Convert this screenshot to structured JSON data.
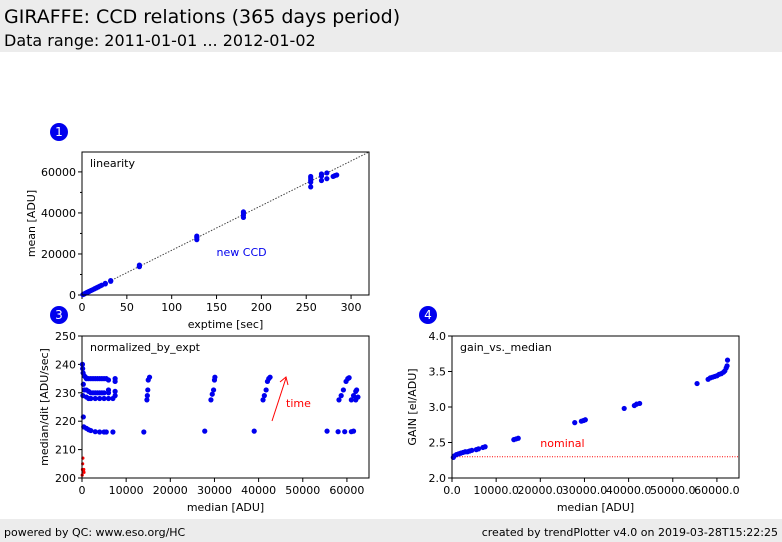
{
  "header": {
    "title": "GIRAFFE: CCD relations (365 days period)",
    "subtitle": "Data range: 2011-01-01 ... 2012-01-02"
  },
  "footer": {
    "left": "powered by QC: www.eso.org/HC",
    "right": "created by trendPlotter v4.0 on 2019-03-28T15:22:25"
  },
  "badges": [
    "1",
    "3",
    "4"
  ],
  "colors": {
    "points": "#0000ee",
    "annotation": "#ff0000",
    "bg": "#ececec"
  },
  "chart_data": [
    {
      "type": "scatter",
      "title": "linearity",
      "xlabel": "exptime [sec]",
      "ylabel": "mean [ADU]",
      "xlim": [
        0,
        320
      ],
      "ylim": [
        0,
        69700
      ],
      "xticks": [
        0,
        50,
        100,
        150,
        200,
        250,
        300
      ],
      "yticks": [
        0,
        20000,
        40000,
        60000
      ],
      "annotation": "new CCD",
      "reference_line": {
        "slope": 217.8,
        "style": "dotted"
      },
      "points": [
        [
          1,
          200
        ],
        [
          2,
          420
        ],
        [
          3,
          650
        ],
        [
          4,
          870
        ],
        [
          5,
          1090
        ],
        [
          6,
          1300
        ],
        [
          7,
          1520
        ],
        [
          8,
          1750
        ],
        [
          10,
          2180
        ],
        [
          12,
          2600
        ],
        [
          14,
          3050
        ],
        [
          16,
          3480
        ],
        [
          18,
          3900
        ],
        [
          20,
          4350
        ],
        [
          22,
          4780
        ],
        [
          26,
          5700
        ],
        [
          26,
          5400
        ],
        [
          32,
          7000
        ],
        [
          32,
          6700
        ],
        [
          64,
          14000
        ],
        [
          64,
          14600
        ],
        [
          64,
          13800
        ],
        [
          128,
          27000
        ],
        [
          128,
          28000
        ],
        [
          128,
          28700
        ],
        [
          180,
          37800
        ],
        [
          180,
          39000
        ],
        [
          180,
          40000
        ],
        [
          180,
          40500
        ],
        [
          255,
          52700
        ],
        [
          255,
          55000
        ],
        [
          255,
          56000
        ],
        [
          255,
          57000
        ],
        [
          255,
          57800
        ],
        [
          267,
          55800
        ],
        [
          267,
          58000
        ],
        [
          267,
          59000
        ],
        [
          273,
          56700
        ],
        [
          273,
          59500
        ],
        [
          280,
          57800
        ],
        [
          282,
          58200
        ],
        [
          284,
          58500
        ]
      ]
    },
    {
      "type": "scatter",
      "title": "normalized_by_expt",
      "xlabel": "median [ADU]",
      "ylabel": "median/dit [ADU/sec]",
      "xlim": [
        0,
        65000
      ],
      "ylim": [
        200,
        250
      ],
      "xticks": [
        0,
        10000,
        20000,
        30000,
        40000,
        50000,
        60000
      ],
      "yticks": [
        200,
        210,
        220,
        230,
        240,
        250
      ],
      "annotation": "time",
      "points": [
        [
          100,
          240
        ],
        [
          150,
          238.5
        ],
        [
          250,
          237
        ],
        [
          300,
          221.5
        ],
        [
          400,
          218
        ],
        [
          300,
          233
        ],
        [
          200,
          229
        ],
        [
          500,
          236
        ],
        [
          800,
          235.5
        ],
        [
          1000,
          235
        ],
        [
          1500,
          235
        ],
        [
          2000,
          235
        ],
        [
          2500,
          235
        ],
        [
          3000,
          235
        ],
        [
          3500,
          235
        ],
        [
          4000,
          235
        ],
        [
          4500,
          235
        ],
        [
          5000,
          235
        ],
        [
          5500,
          235
        ],
        [
          6000,
          234.5
        ],
        [
          7500,
          235
        ],
        [
          7500,
          234
        ],
        [
          500,
          231
        ],
        [
          1000,
          231
        ],
        [
          1500,
          230.5
        ],
        [
          2000,
          230
        ],
        [
          2500,
          230
        ],
        [
          3000,
          230
        ],
        [
          3500,
          230
        ],
        [
          4000,
          230
        ],
        [
          4500,
          230
        ],
        [
          5000,
          230
        ],
        [
          6000,
          230
        ],
        [
          7500,
          230.5
        ],
        [
          1000,
          228.5
        ],
        [
          1500,
          228
        ],
        [
          2000,
          228
        ],
        [
          3000,
          228
        ],
        [
          4000,
          228
        ],
        [
          5000,
          228
        ],
        [
          6000,
          228
        ],
        [
          7000,
          228
        ],
        [
          7500,
          229
        ],
        [
          6000,
          231
        ],
        [
          1000,
          217.5
        ],
        [
          1500,
          217
        ],
        [
          2000,
          216.7
        ],
        [
          3000,
          216.3
        ],
        [
          4000,
          216.2
        ],
        [
          5000,
          216.2
        ],
        [
          5500,
          216.2
        ],
        [
          7000,
          216.2
        ],
        [
          14000,
          216.2
        ],
        [
          27800,
          216.5
        ],
        [
          39000,
          216.5
        ],
        [
          55500,
          216.5
        ],
        [
          58000,
          216.3
        ],
        [
          59500,
          216.3
        ],
        [
          61000,
          216.3
        ],
        [
          61500,
          216.5
        ],
        [
          14700,
          227.5
        ],
        [
          14800,
          229
        ],
        [
          14900,
          231
        ],
        [
          15000,
          234.5
        ],
        [
          15300,
          235.5
        ],
        [
          29200,
          227.5
        ],
        [
          29500,
          229.5
        ],
        [
          29800,
          231
        ],
        [
          30000,
          234.5
        ],
        [
          30100,
          235.5
        ],
        [
          41000,
          227.5
        ],
        [
          41300,
          229
        ],
        [
          41700,
          231
        ],
        [
          42000,
          234
        ],
        [
          42300,
          235
        ],
        [
          42600,
          235.5
        ],
        [
          58200,
          227.5
        ],
        [
          58700,
          229
        ],
        [
          59200,
          231
        ],
        [
          59800,
          234
        ],
        [
          60200,
          235
        ],
        [
          60500,
          235.3
        ],
        [
          61000,
          227.5
        ],
        [
          61500,
          229
        ],
        [
          62000,
          230.5
        ],
        [
          62200,
          231
        ],
        [
          62500,
          228.5
        ],
        [
          62000,
          227.5
        ]
      ],
      "red_points": [
        [
          50,
          201
        ],
        [
          100,
          203
        ],
        [
          150,
          205
        ],
        [
          200,
          207
        ],
        [
          300,
          202.5
        ],
        [
          400,
          203
        ],
        [
          450,
          202
        ]
      ]
    },
    {
      "type": "scatter",
      "title": "gain_vs._median",
      "xlabel": "median [ADU]",
      "ylabel": "GAIN [el/ADU]",
      "xlim": [
        0,
        65000
      ],
      "ylim": [
        2.0,
        4.0
      ],
      "xticks": [
        0,
        10000,
        20000,
        30000,
        40000,
        50000,
        60000
      ],
      "yticks": [
        2.0,
        2.5,
        3.0,
        3.5,
        4.0
      ],
      "annotation": "nominal",
      "reference_line": {
        "y": 2.3,
        "style": "dotted"
      },
      "points": [
        [
          300,
          2.29
        ],
        [
          500,
          2.31
        ],
        [
          1000,
          2.33
        ],
        [
          1500,
          2.34
        ],
        [
          2000,
          2.35
        ],
        [
          2500,
          2.36
        ],
        [
          3000,
          2.37
        ],
        [
          3500,
          2.37
        ],
        [
          4000,
          2.38
        ],
        [
          4500,
          2.39
        ],
        [
          5500,
          2.4
        ],
        [
          6000,
          2.41
        ],
        [
          7000,
          2.43
        ],
        [
          7500,
          2.44
        ],
        [
          14000,
          2.54
        ],
        [
          14500,
          2.55
        ],
        [
          15000,
          2.56
        ],
        [
          27800,
          2.78
        ],
        [
          29300,
          2.8
        ],
        [
          29800,
          2.81
        ],
        [
          30200,
          2.82
        ],
        [
          39000,
          2.98
        ],
        [
          41300,
          3.02
        ],
        [
          41800,
          3.04
        ],
        [
          42500,
          3.05
        ],
        [
          55500,
          3.33
        ],
        [
          58000,
          3.39
        ],
        [
          58500,
          3.41
        ],
        [
          59000,
          3.42
        ],
        [
          59500,
          3.43
        ],
        [
          60000,
          3.44
        ],
        [
          60500,
          3.46
        ],
        [
          61000,
          3.47
        ],
        [
          61500,
          3.49
        ],
        [
          61800,
          3.51
        ],
        [
          62100,
          3.55
        ],
        [
          62300,
          3.58
        ],
        [
          62400,
          3.66
        ]
      ]
    }
  ]
}
